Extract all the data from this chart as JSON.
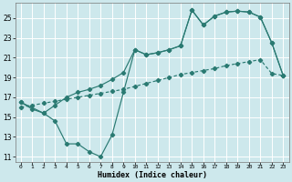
{
  "xlabel": "Humidex (Indice chaleur)",
  "bg_color": "#cde8ec",
  "grid_color": "#ffffff",
  "line_color": "#2a7a72",
  "xlim": [
    -0.5,
    23.5
  ],
  "ylim": [
    10.5,
    26.5
  ],
  "xticks": [
    0,
    1,
    2,
    3,
    4,
    5,
    6,
    7,
    8,
    9,
    10,
    11,
    12,
    13,
    14,
    15,
    16,
    17,
    18,
    19,
    20,
    21,
    22,
    23
  ],
  "yticks": [
    11,
    13,
    15,
    17,
    19,
    21,
    23,
    25
  ],
  "line1_x": [
    0,
    1,
    2,
    3,
    4,
    5,
    6,
    7,
    8,
    9,
    10,
    11,
    12,
    13,
    14,
    15,
    16,
    17,
    18,
    19,
    20,
    21,
    22,
    23
  ],
  "line1_y": [
    16.5,
    15.8,
    15.4,
    14.6,
    12.3,
    12.3,
    11.5,
    11.0,
    13.2,
    17.5,
    21.8,
    21.3,
    21.5,
    21.8,
    22.2,
    25.8,
    24.3,
    25.2,
    25.6,
    25.7,
    25.6,
    25.1,
    22.5,
    19.2
  ],
  "line2_x": [
    0,
    2,
    3,
    4,
    5,
    6,
    7,
    8,
    9,
    10,
    11,
    12,
    13,
    14,
    15,
    16,
    17,
    18,
    19,
    20,
    21,
    22,
    23
  ],
  "line2_y": [
    16.5,
    15.4,
    16.2,
    17.0,
    17.5,
    17.8,
    18.2,
    18.8,
    19.5,
    21.8,
    21.3,
    21.5,
    21.8,
    22.2,
    25.8,
    24.3,
    25.2,
    25.6,
    25.7,
    25.6,
    25.1,
    22.5,
    19.2
  ],
  "line3_x": [
    0,
    1,
    2,
    3,
    4,
    5,
    6,
    7,
    8,
    9,
    10,
    11,
    12,
    13,
    14,
    15,
    16,
    17,
    18,
    19,
    20,
    21,
    22,
    23
  ],
  "line3_y": [
    16.0,
    16.2,
    16.4,
    16.6,
    16.8,
    17.0,
    17.2,
    17.4,
    17.6,
    17.8,
    18.1,
    18.4,
    18.7,
    19.0,
    19.3,
    19.5,
    19.7,
    19.9,
    20.2,
    20.4,
    20.6,
    20.8,
    19.4,
    19.2
  ]
}
